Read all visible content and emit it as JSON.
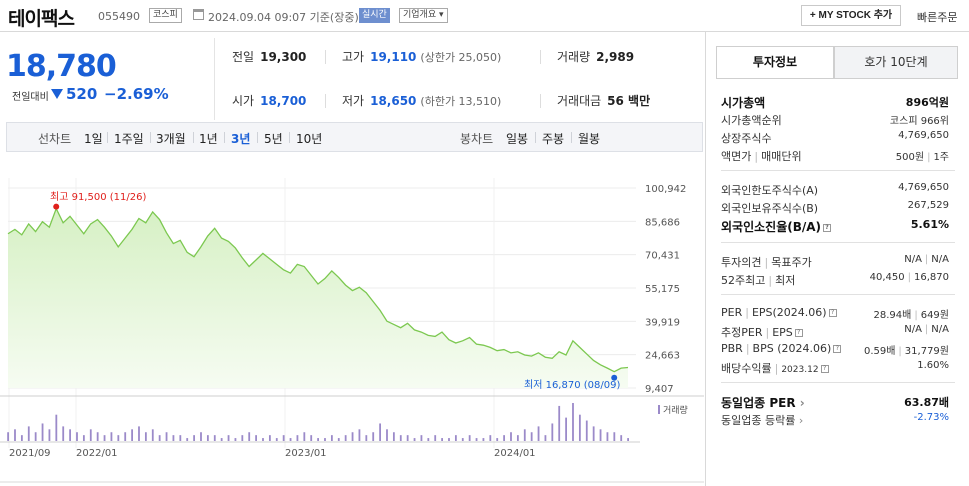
{
  "header": {
    "name": "테이팩스",
    "code": "055490",
    "market": "코스피",
    "date": "2024.09.04 09:07 기준(장중)",
    "realtime": "실시간",
    "overview": "기업개요 ▾",
    "mystock": "+ MY STOCK 추가",
    "quick_order": "빠른주문"
  },
  "price": {
    "current": "18,780",
    "prev_label": "전일대비",
    "change": "520",
    "change_pct": "−2.69%"
  },
  "stats": {
    "prev_close": {
      "label": "전일",
      "value": "19,300"
    },
    "high": {
      "label": "고가",
      "value": "19,110",
      "sub": "(상한가 25,050)"
    },
    "volume": {
      "label": "거래량",
      "value": "2,989"
    },
    "open": {
      "label": "시가",
      "value": "18,700"
    },
    "low": {
      "label": "저가",
      "value": "18,650",
      "sub": "(하한가 13,510)"
    },
    "amount": {
      "label": "거래대금",
      "value": "56 백만"
    }
  },
  "toolbar": {
    "line_label": "선차트",
    "periods": [
      "1일",
      "1주일",
      "3개월",
      "1년",
      "3년",
      "5년",
      "10년"
    ],
    "active_period": "3년",
    "candle_label": "봉차트",
    "candles": [
      "일봉",
      "주봉",
      "월봉"
    ]
  },
  "chart_data": {
    "type": "area",
    "x_ticks": [
      "2021/09",
      "2022/01",
      "2023/01",
      "2024/01"
    ],
    "y_ticks": [
      "100,942",
      "85,686",
      "70,431",
      "55,175",
      "39,919",
      "24,663",
      "9,407"
    ],
    "ylim": [
      9407,
      100942
    ],
    "high_label": "최고 91,500 (11/26)",
    "low_label": "최저 16,870 (08/09)",
    "volume_label": "거래량",
    "grid": true,
    "line_color": "#7cc850",
    "fill_color": "#d6f0c4",
    "high_color": "#e0201c",
    "low_color": "#1a5fd6",
    "volume_color": "#9b8ac9",
    "values": [
      80000,
      82000,
      79500,
      84500,
      81000,
      85500,
      83000,
      91500,
      85000,
      88000,
      84000,
      80000,
      84500,
      86500,
      83000,
      79000,
      74000,
      78000,
      82000,
      87000,
      85000,
      90000,
      86500,
      80500,
      75500,
      77000,
      71500,
      69500,
      74000,
      79000,
      82500,
      78000,
      76500,
      73500,
      69000,
      65000,
      68000,
      71000,
      68500,
      66000,
      63500,
      62000,
      66000,
      65000,
      61000,
      57000,
      59500,
      63000,
      60000,
      56500,
      54000,
      55500,
      53000,
      49000,
      45000,
      40000,
      38500,
      37000,
      39000,
      36000,
      35000,
      33500,
      33000,
      35000,
      31500,
      30000,
      31000,
      32500,
      29500,
      29000,
      28000,
      26500,
      27000,
      25500,
      26000,
      24500,
      24000,
      25500,
      23500,
      23000,
      26000,
      24500,
      31000,
      28000,
      25000,
      22000,
      20000,
      18500,
      16870,
      18500,
      18780
    ],
    "volume": [
      3,
      4,
      2,
      5,
      3,
      6,
      4,
      9,
      5,
      4,
      3,
      2,
      4,
      3,
      2,
      3,
      2,
      3,
      4,
      5,
      3,
      4,
      2,
      3,
      2,
      2,
      1,
      2,
      3,
      2,
      2,
      1,
      2,
      1,
      2,
      3,
      2,
      1,
      2,
      1,
      2,
      1,
      2,
      3,
      2,
      1,
      1,
      2,
      1,
      2,
      3,
      4,
      2,
      3,
      6,
      4,
      3,
      2,
      2,
      1,
      2,
      1,
      2,
      1,
      1,
      2,
      1,
      2,
      1,
      1,
      2,
      1,
      2,
      3,
      2,
      4,
      3,
      5,
      2,
      6,
      12,
      8,
      13,
      9,
      7,
      5,
      4,
      3,
      3,
      2,
      1
    ]
  },
  "panel": {
    "tab_active": "투자정보",
    "tab_inactive": "호가 10단계",
    "rows": [
      {
        "label": "시가총액",
        "value": "896억원"
      },
      {
        "label": "시가총액순위",
        "value": "코스피 966위"
      },
      {
        "label": "상장주식수",
        "value": "4,769,650"
      },
      {
        "label": "액면가",
        "label2": "매매단위",
        "value": "500원",
        "value2": "1주"
      },
      {
        "label": "외국인한도주식수(A)",
        "value": "4,769,650"
      },
      {
        "label": "외국인보유주식수(B)",
        "value": "267,529"
      },
      {
        "label": "외국인소진율(B/A)",
        "value": "5.61%"
      },
      {
        "label": "투자의견",
        "label2": "목표주가",
        "value": "N/A",
        "value2": "N/A"
      },
      {
        "label": "52주최고",
        "label2": "최저",
        "value": "40,450",
        "value2": "16,870"
      },
      {
        "label": "PER",
        "label2": "EPS(2024.06)",
        "value": "28.94배",
        "value2": "649원"
      },
      {
        "label": "추정PER",
        "label2": "EPS",
        "value": "N/A",
        "value2": "N/A"
      },
      {
        "label": "PBR",
        "label2": "BPS (2024.06)",
        "value": "0.59배",
        "value2": "31,779원"
      },
      {
        "label": "배당수익률",
        "label2": "2023.12",
        "value": "1.60%"
      },
      {
        "label": "동일업종 PER",
        "value": "63.87배"
      },
      {
        "label": "동일업종 등락률",
        "value": "-2.73%"
      }
    ]
  }
}
